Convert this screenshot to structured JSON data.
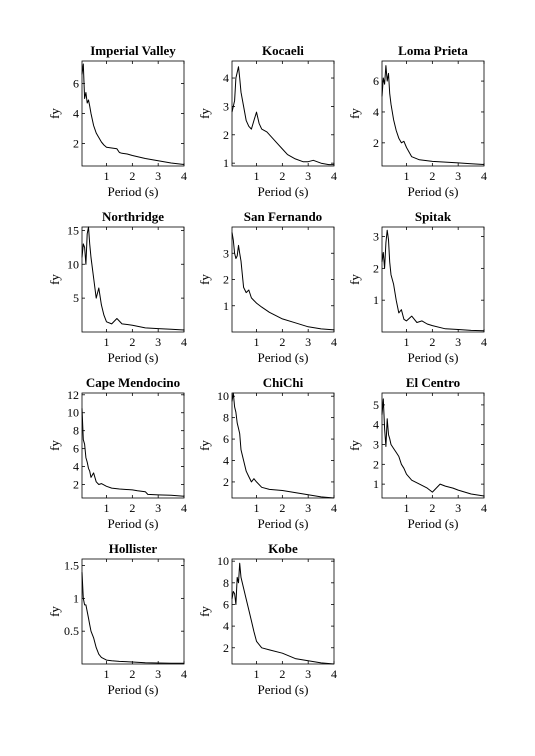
{
  "chart_data": [
    {
      "type": "line",
      "title": "Imperial Valley",
      "xlabel": "Period (s)",
      "ylabel": "fy",
      "xlim": [
        0.05,
        4
      ],
      "ylim": [
        0.5,
        7.5
      ],
      "xticks": [
        1,
        2,
        3,
        4
      ],
      "yticks": [
        2,
        4,
        6
      ],
      "series": [
        {
          "x": [
            0.05,
            0.1,
            0.15,
            0.2,
            0.25,
            0.3,
            0.35,
            0.4,
            0.5,
            0.6,
            0.7,
            0.8,
            0.9,
            1.0,
            1.2,
            1.4,
            1.5,
            1.6,
            1.8,
            2.0,
            2.5,
            3.0,
            3.5,
            4.0
          ],
          "y": [
            6.6,
            7.3,
            5.0,
            5.4,
            4.7,
            4.9,
            4.5,
            4.0,
            3.2,
            2.7,
            2.4,
            2.1,
            1.9,
            1.75,
            1.7,
            1.65,
            1.4,
            1.35,
            1.3,
            1.2,
            1.0,
            0.85,
            0.7,
            0.6
          ]
        }
      ]
    },
    {
      "type": "line",
      "title": "Kocaeli",
      "xlabel": "Period (s)",
      "ylabel": "fy",
      "xlim": [
        0.05,
        4
      ],
      "ylim": [
        0.9,
        4.6
      ],
      "xticks": [
        1,
        2,
        3,
        4
      ],
      "yticks": [
        1,
        2,
        3,
        4
      ],
      "series": [
        {
          "x": [
            0.05,
            0.1,
            0.15,
            0.2,
            0.25,
            0.3,
            0.35,
            0.4,
            0.5,
            0.6,
            0.7,
            0.8,
            0.9,
            1.0,
            1.1,
            1.2,
            1.4,
            1.6,
            1.8,
            2.0,
            2.2,
            2.5,
            2.8,
            3.0,
            3.2,
            3.5,
            3.8,
            4.0
          ],
          "y": [
            2.8,
            3.0,
            3.2,
            4.0,
            4.2,
            4.4,
            4.0,
            3.5,
            3.0,
            2.5,
            2.3,
            2.2,
            2.5,
            2.8,
            2.4,
            2.2,
            2.1,
            1.9,
            1.7,
            1.5,
            1.3,
            1.15,
            1.05,
            1.05,
            1.1,
            1.0,
            0.95,
            0.95
          ]
        }
      ]
    },
    {
      "type": "line",
      "title": "Loma Prieta",
      "xlabel": "Period (s)",
      "ylabel": "fy",
      "xlim": [
        0.05,
        4
      ],
      "ylim": [
        0.5,
        7.3
      ],
      "xticks": [
        1,
        2,
        3,
        4
      ],
      "yticks": [
        2,
        4,
        6
      ],
      "series": [
        {
          "x": [
            0.05,
            0.1,
            0.15,
            0.2,
            0.25,
            0.3,
            0.35,
            0.4,
            0.5,
            0.6,
            0.7,
            0.8,
            0.9,
            1.0,
            1.2,
            1.5,
            2.0,
            2.5,
            3.0,
            3.5,
            4.0
          ],
          "y": [
            5.0,
            6.2,
            5.8,
            7.0,
            6.0,
            6.5,
            5.2,
            4.5,
            3.5,
            2.8,
            2.3,
            2.0,
            2.1,
            1.7,
            1.1,
            0.9,
            0.8,
            0.75,
            0.7,
            0.65,
            0.6
          ]
        }
      ]
    },
    {
      "type": "line",
      "title": "Northridge",
      "xlabel": "Period (s)",
      "ylabel": "fy",
      "xlim": [
        0.05,
        4
      ],
      "ylim": [
        0,
        15.5
      ],
      "xticks": [
        1,
        2,
        3,
        4
      ],
      "yticks": [
        5,
        10,
        15
      ],
      "series": [
        {
          "x": [
            0.05,
            0.1,
            0.15,
            0.2,
            0.25,
            0.3,
            0.35,
            0.4,
            0.5,
            0.6,
            0.7,
            0.8,
            0.9,
            1.0,
            1.2,
            1.4,
            1.6,
            1.8,
            2.0,
            2.5,
            3.0,
            3.5,
            4.0
          ],
          "y": [
            11.0,
            13.0,
            12.5,
            10.0,
            14.5,
            15.5,
            13.0,
            11.0,
            8.0,
            5.0,
            6.5,
            4.0,
            2.5,
            1.5,
            1.2,
            2.0,
            1.2,
            1.1,
            1.0,
            0.6,
            0.5,
            0.4,
            0.3
          ]
        }
      ]
    },
    {
      "type": "line",
      "title": "San Fernando",
      "xlabel": "Period (s)",
      "ylabel": "fy",
      "xlim": [
        0.05,
        4
      ],
      "ylim": [
        0,
        4.0
      ],
      "xticks": [
        1,
        2,
        3,
        4
      ],
      "yticks": [
        1,
        2,
        3
      ],
      "series": [
        {
          "x": [
            0.05,
            0.1,
            0.15,
            0.2,
            0.25,
            0.3,
            0.35,
            0.4,
            0.45,
            0.5,
            0.6,
            0.7,
            0.8,
            0.9,
            1.0,
            1.2,
            1.5,
            2.0,
            2.5,
            3.0,
            3.5,
            4.0
          ],
          "y": [
            3.8,
            3.5,
            3.0,
            2.8,
            2.9,
            3.3,
            3.0,
            2.7,
            2.2,
            1.7,
            1.5,
            1.6,
            1.3,
            1.2,
            1.1,
            0.95,
            0.75,
            0.5,
            0.35,
            0.2,
            0.12,
            0.08
          ]
        }
      ]
    },
    {
      "type": "line",
      "title": "Spitak",
      "xlabel": "Period (s)",
      "ylabel": "fy",
      "xlim": [
        0.05,
        4
      ],
      "ylim": [
        0,
        3.3
      ],
      "xticks": [
        1,
        2,
        3,
        4
      ],
      "yticks": [
        1,
        2,
        3
      ],
      "series": [
        {
          "x": [
            0.05,
            0.1,
            0.15,
            0.2,
            0.25,
            0.3,
            0.35,
            0.4,
            0.5,
            0.6,
            0.7,
            0.8,
            0.9,
            1.0,
            1.2,
            1.4,
            1.6,
            1.8,
            2.0,
            2.5,
            3.0,
            3.5,
            4.0
          ],
          "y": [
            2.2,
            2.5,
            2.0,
            2.8,
            3.2,
            2.9,
            2.2,
            1.8,
            1.5,
            1.0,
            0.6,
            0.7,
            0.4,
            0.35,
            0.5,
            0.3,
            0.35,
            0.25,
            0.2,
            0.1,
            0.08,
            0.05,
            0.04
          ]
        }
      ]
    },
    {
      "type": "line",
      "title": "Cape Mendocino",
      "xlabel": "Period (s)",
      "ylabel": "fy",
      "xlim": [
        0.05,
        4
      ],
      "ylim": [
        0.5,
        12.2
      ],
      "xticks": [
        1,
        2,
        3,
        4
      ],
      "yticks": [
        2,
        4,
        6,
        8,
        10,
        12
      ],
      "series": [
        {
          "x": [
            0.05,
            0.1,
            0.15,
            0.2,
            0.25,
            0.3,
            0.35,
            0.4,
            0.5,
            0.6,
            0.7,
            0.8,
            1.0,
            1.2,
            1.5,
            2.0,
            2.2,
            2.5,
            2.6,
            3.0,
            3.5,
            4.0
          ],
          "y": [
            10.5,
            7.0,
            6.5,
            5.0,
            4.5,
            3.8,
            3.5,
            2.8,
            3.3,
            2.3,
            2.0,
            2.1,
            1.8,
            1.6,
            1.5,
            1.4,
            1.3,
            1.2,
            0.9,
            0.85,
            0.8,
            0.7
          ]
        }
      ]
    },
    {
      "type": "line",
      "title": "ChiChi",
      "xlabel": "Period (s)",
      "ylabel": "fy",
      "xlim": [
        0.05,
        4
      ],
      "ylim": [
        0.5,
        10.3
      ],
      "xticks": [
        1,
        2,
        3,
        4
      ],
      "yticks": [
        2,
        4,
        6,
        8,
        10
      ],
      "series": [
        {
          "x": [
            0.05,
            0.1,
            0.15,
            0.2,
            0.25,
            0.3,
            0.35,
            0.4,
            0.5,
            0.6,
            0.7,
            0.8,
            0.9,
            1.0,
            1.2,
            1.5,
            2.0,
            2.5,
            3.0,
            3.5,
            4.0
          ],
          "y": [
            9.5,
            10.3,
            9.0,
            8.5,
            7.5,
            7.0,
            6.5,
            5.0,
            4.0,
            3.0,
            2.5,
            2.0,
            2.3,
            2.0,
            1.5,
            1.3,
            1.2,
            1.0,
            0.8,
            0.6,
            0.5
          ]
        }
      ]
    },
    {
      "type": "line",
      "title": "El Centro",
      "xlabel": "Period (s)",
      "ylabel": "fy",
      "xlim": [
        0.05,
        4
      ],
      "ylim": [
        0.3,
        5.6
      ],
      "xticks": [
        1,
        2,
        3,
        4
      ],
      "yticks": [
        1,
        2,
        3,
        4,
        5
      ],
      "series": [
        {
          "x": [
            0.05,
            0.1,
            0.15,
            0.2,
            0.25,
            0.3,
            0.35,
            0.4,
            0.5,
            0.6,
            0.7,
            0.8,
            0.9,
            1.0,
            1.2,
            1.5,
            1.8,
            2.0,
            2.3,
            2.5,
            2.8,
            3.0,
            3.5,
            4.0
          ],
          "y": [
            4.5,
            5.3,
            3.8,
            2.9,
            4.3,
            3.5,
            3.3,
            3.0,
            2.8,
            2.6,
            2.4,
            2.0,
            1.8,
            1.5,
            1.2,
            1.0,
            0.8,
            0.6,
            1.0,
            0.9,
            0.8,
            0.7,
            0.5,
            0.4
          ]
        }
      ]
    },
    {
      "type": "line",
      "title": "Hollister",
      "xlabel": "Period (s)",
      "ylabel": "fy",
      "xlim": [
        0.05,
        4
      ],
      "ylim": [
        0,
        1.6
      ],
      "xticks": [
        1,
        2,
        3,
        4
      ],
      "yticks": [
        0.5,
        1,
        1.5
      ],
      "series": [
        {
          "x": [
            0.05,
            0.1,
            0.15,
            0.2,
            0.25,
            0.3,
            0.35,
            0.4,
            0.5,
            0.6,
            0.7,
            0.8,
            1.0,
            1.2,
            1.5,
            2.0,
            2.5,
            3.0,
            3.5,
            4.0
          ],
          "y": [
            1.4,
            1.0,
            0.9,
            0.9,
            0.8,
            0.7,
            0.6,
            0.5,
            0.4,
            0.25,
            0.15,
            0.1,
            0.06,
            0.05,
            0.04,
            0.03,
            0.02,
            0.015,
            0.01,
            0.01
          ]
        }
      ]
    },
    {
      "type": "line",
      "title": "Kobe",
      "xlabel": "Period (s)",
      "ylabel": "fy",
      "xlim": [
        0.05,
        4
      ],
      "ylim": [
        0.5,
        10.2
      ],
      "xticks": [
        1,
        2,
        3,
        4
      ],
      "yticks": [
        2,
        4,
        6,
        8,
        10
      ],
      "series": [
        {
          "x": [
            0.05,
            0.1,
            0.15,
            0.2,
            0.25,
            0.3,
            0.35,
            0.4,
            0.5,
            0.6,
            0.7,
            0.8,
            0.9,
            1.0,
            1.2,
            1.5,
            2.0,
            2.5,
            3.0,
            3.5,
            4.0
          ],
          "y": [
            6.5,
            7.2,
            7.0,
            6.0,
            8.5,
            8.0,
            9.8,
            8.5,
            7.5,
            6.5,
            5.5,
            4.5,
            3.5,
            2.6,
            2.0,
            1.8,
            1.5,
            1.0,
            0.8,
            0.6,
            0.5
          ]
        }
      ]
    }
  ]
}
